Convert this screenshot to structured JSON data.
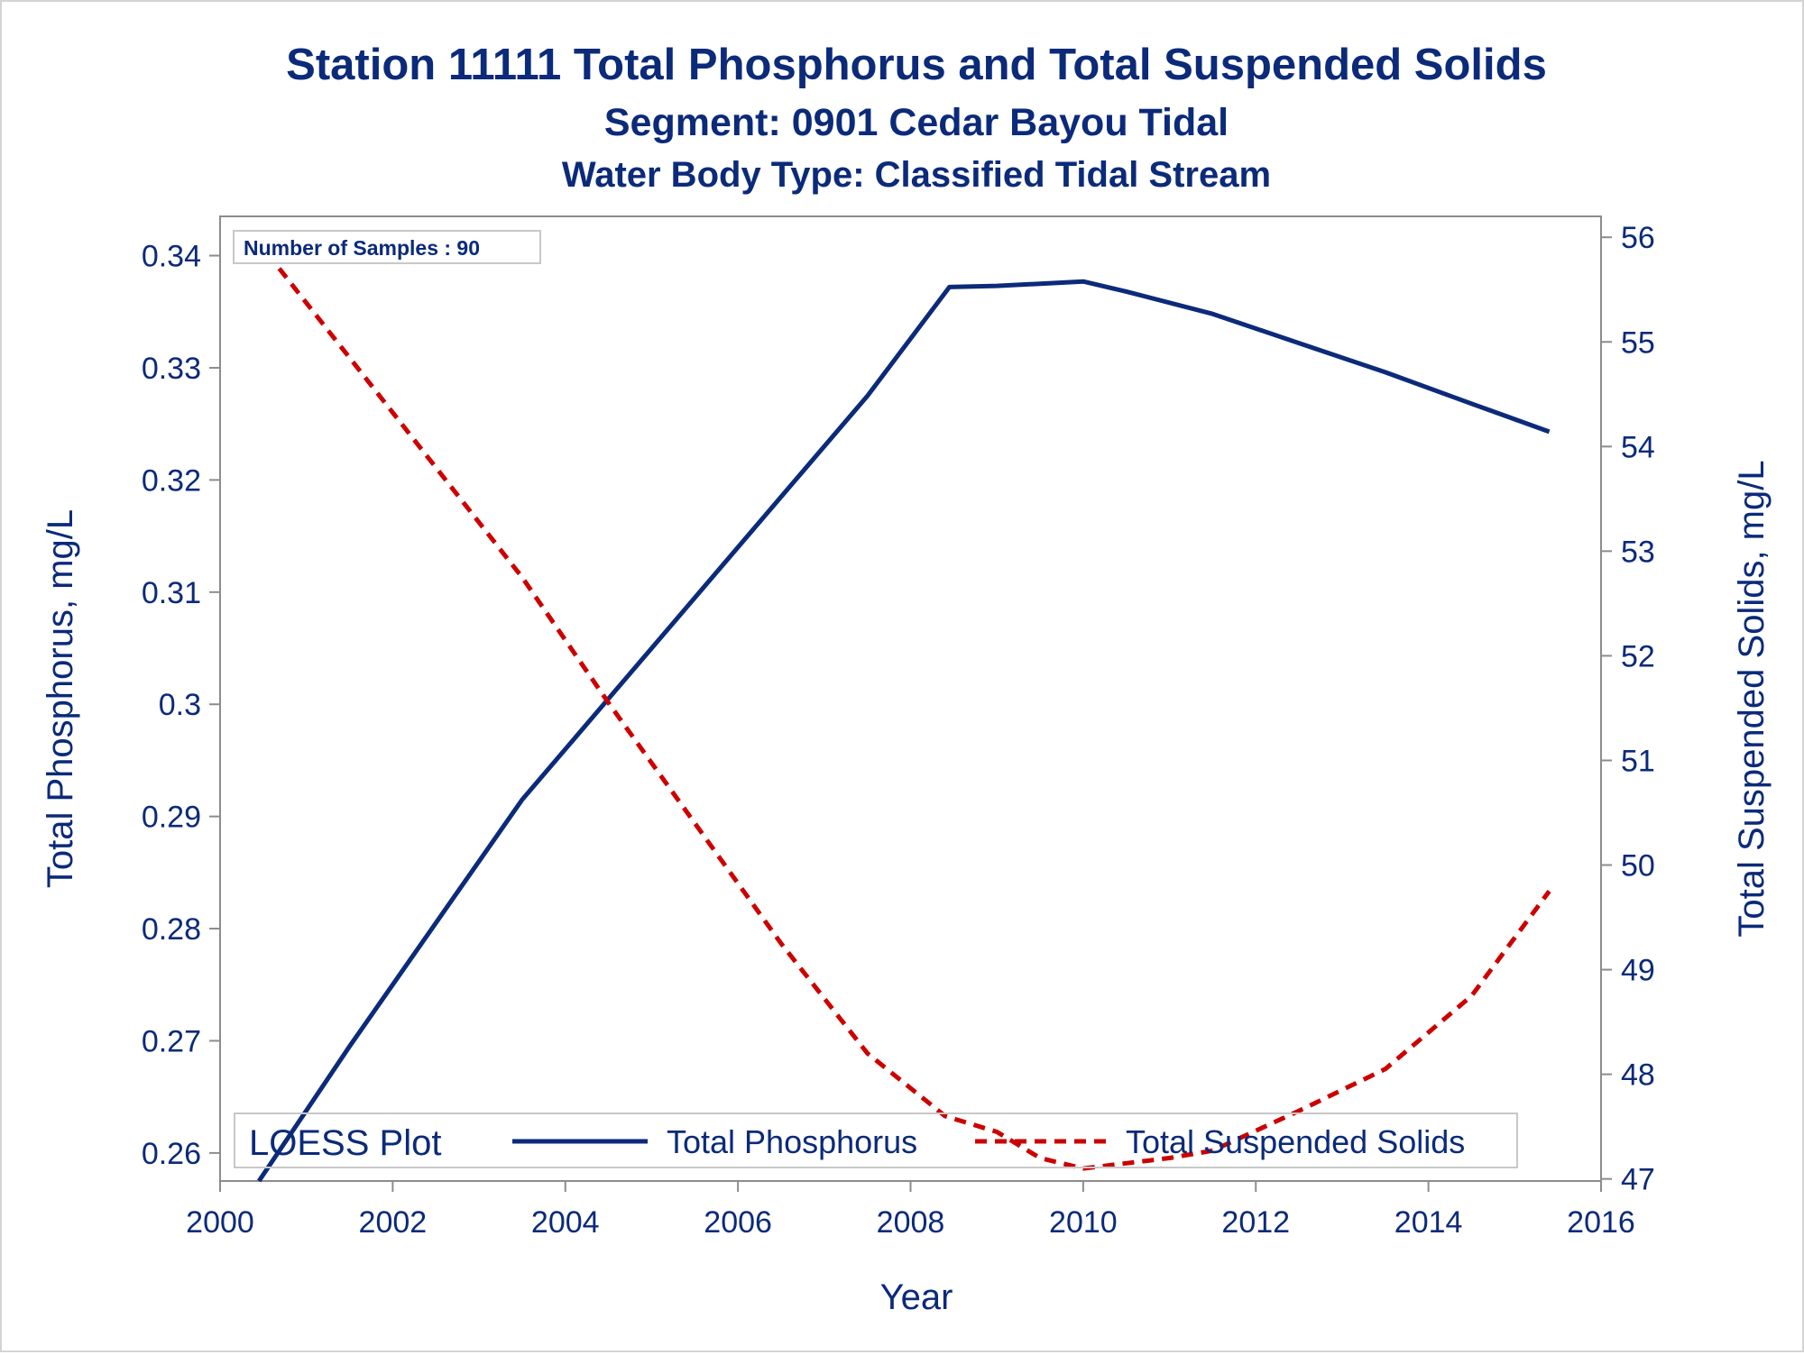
{
  "titles": {
    "title": "Station 11111  Total Phosphorus and Total Suspended Solids",
    "subtitle": "Segment: 0901  Cedar Bayou Tidal",
    "subtitle2": "Water Body Type: Classified Tidal Stream"
  },
  "annotation": "Number of Samples : 90",
  "legend": {
    "title": "LOESS Plot",
    "items": [
      "Total Phosphorus",
      "Total Suspended Solids"
    ]
  },
  "colors": {
    "phosphorus": "#0b2a7a",
    "tss": "#cc0000",
    "text": "#0b2a7a",
    "axis": "#8c8c8c"
  },
  "chart_data": {
    "type": "line",
    "title": "Station 11111  Total Phosphorus and Total Suspended Solids",
    "xlabel": "Year",
    "ylabel": "Total Phosphorus, mg/L",
    "y2label": "Total Suspended Solids, mg/L",
    "xlim": [
      2000,
      2016
    ],
    "ylim": [
      0.2575,
      0.3435
    ],
    "y2lim": [
      46.98,
      56.2
    ],
    "x_ticks": [
      "2000",
      "2002",
      "2004",
      "2006",
      "2008",
      "2010",
      "2012",
      "2014",
      "2016"
    ],
    "y_ticks": [
      "0.26",
      "0.27",
      "0.28",
      "0.29",
      "0.3",
      "0.31",
      "0.32",
      "0.33",
      "0.34"
    ],
    "y2_ticks": [
      "47",
      "48",
      "49",
      "50",
      "51",
      "52",
      "53",
      "54",
      "55",
      "56"
    ],
    "legend_position": "bottom-inside",
    "grid": false,
    "series": [
      {
        "name": "Total Phosphorus",
        "axis": "left",
        "style": "solid",
        "x": [
          2000.45,
          2001.5,
          2002.5,
          2003.5,
          2004.5,
          2005.5,
          2006.5,
          2007.5,
          2008.45,
          2009.0,
          2009.5,
          2010.0,
          2010.5,
          2011.5,
          2012.5,
          2013.5,
          2014.5,
          2015.4
        ],
        "values": [
          0.2575,
          0.2695,
          0.2805,
          0.2915,
          0.3005,
          0.3095,
          0.3185,
          0.3275,
          0.3372,
          0.3373,
          0.3375,
          0.3377,
          0.3368,
          0.3348,
          0.3322,
          0.3296,
          0.3268,
          0.3243
        ]
      },
      {
        "name": "Total Suspended Solids",
        "axis": "right",
        "style": "dashed",
        "x": [
          2000.4,
          2001.5,
          2002.5,
          2003.5,
          2004.5,
          2005.5,
          2006.5,
          2007.5,
          2008.4,
          2009.0,
          2009.5,
          2010.0,
          2010.5,
          2011.0,
          2011.5,
          2012.5,
          2013.5,
          2014.5,
          2015.4
        ],
        "values": [
          56.0,
          54.85,
          53.8,
          52.75,
          51.55,
          50.4,
          49.25,
          48.2,
          47.6,
          47.45,
          47.2,
          47.1,
          47.15,
          47.2,
          47.27,
          47.65,
          48.05,
          48.75,
          49.75
        ]
      }
    ]
  }
}
